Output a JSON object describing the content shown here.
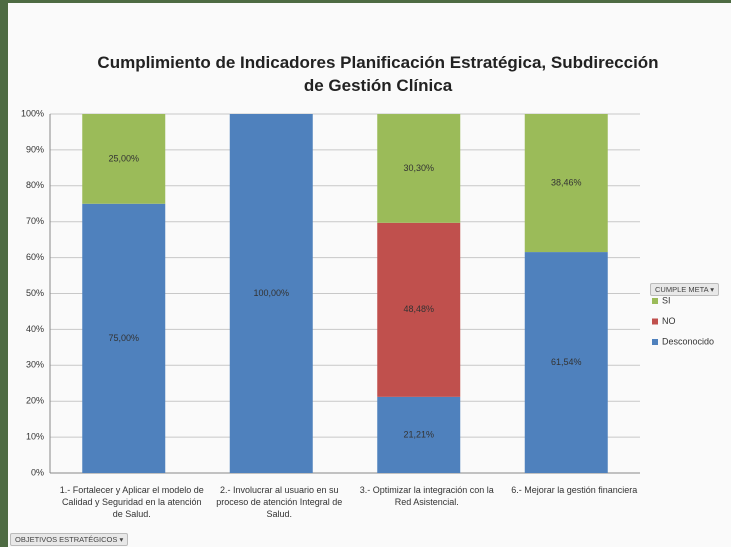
{
  "chart_data": {
    "type": "stacked_bar",
    "title": "Cumplimiento de Indicadores Planificación Estratégica, Subdirección de Gestión Clínica",
    "categories": [
      "1.- Fortalecer y Aplicar el modelo de Calidad y Seguridad en la atención de Salud.",
      "2.- Involucrar al usuario en su proceso de atención Integral de Salud.",
      "3.- Optimizar la integración con la Red Asistencial.",
      "6.- Mejorar la gestión financiera"
    ],
    "series": [
      {
        "name": "Desconocido",
        "color": "#4f81bd",
        "values": [
          75,
          100,
          21.21,
          61.54
        ],
        "value_labels": [
          "75,00%",
          "100,00%",
          "21,21%",
          "61,54%"
        ]
      },
      {
        "name": "NO",
        "color": "#c0504d",
        "values": [
          null,
          null,
          48.48,
          null
        ],
        "value_labels": [
          null,
          null,
          "48,48%",
          null
        ]
      },
      {
        "name": "SI",
        "color": "#9bbb59",
        "values": [
          25,
          null,
          30.3,
          38.46
        ],
        "value_labels": [
          "25,00%",
          null,
          "30,30%",
          "38,46%"
        ]
      }
    ],
    "ylim": [
      0,
      100
    ],
    "yticks": [
      {
        "value": 0,
        "label": "0%"
      },
      {
        "value": 10,
        "label": "10%"
      },
      {
        "value": 20,
        "label": "20%"
      },
      {
        "value": 30,
        "label": "30%"
      },
      {
        "value": 40,
        "label": "40%"
      },
      {
        "value": 50,
        "label": "50%"
      },
      {
        "value": 60,
        "label": "60%"
      },
      {
        "value": 70,
        "label": "70%"
      },
      {
        "value": 80,
        "label": "80%"
      },
      {
        "value": 90,
        "label": "90%"
      },
      {
        "value": 100,
        "label": "100%"
      }
    ],
    "grid": true,
    "legend_title": "CUMPLE META",
    "field_button": "OBJETIVOS ESTRATÉGICOS"
  }
}
